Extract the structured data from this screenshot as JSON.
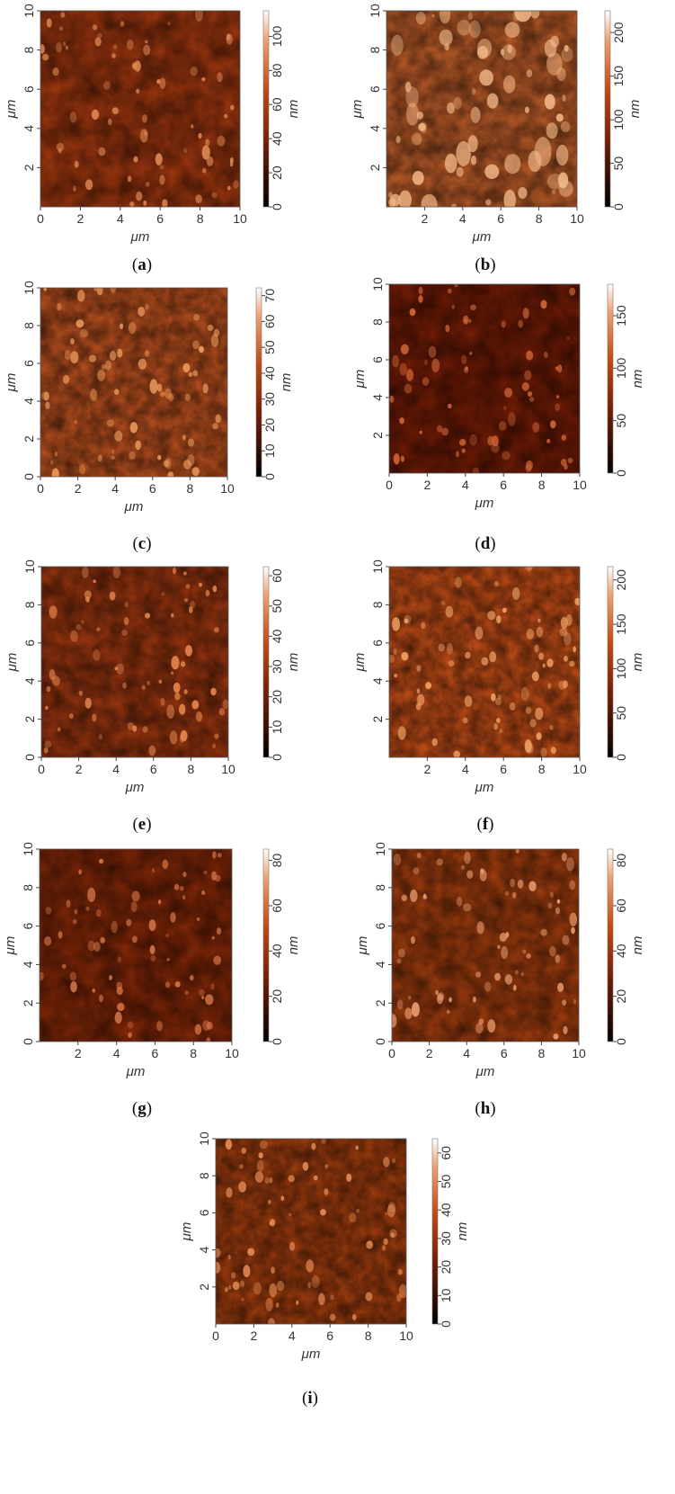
{
  "figure": {
    "panels": [
      {
        "label": "a",
        "caption": "(a)",
        "x_unit": "μm",
        "y_unit": "μm",
        "bar_unit": "nm",
        "x_ticks": [
          "0",
          "2",
          "4",
          "6",
          "8",
          "10"
        ],
        "y_ticks": [
          "2",
          "4",
          "6",
          "8",
          "10"
        ],
        "bar_ticks": [
          "0",
          "20",
          "40",
          "60",
          "80",
          "100"
        ],
        "bar_max": 115,
        "colors": [
          "#5a1806",
          "#a83a10",
          "#e08a55"
        ]
      },
      {
        "label": "b",
        "caption": "(b)",
        "x_unit": "μm",
        "y_unit": "μm",
        "bar_unit": "nm",
        "x_ticks": [
          "2",
          "4",
          "6",
          "8",
          "10"
        ],
        "y_ticks": [
          "2",
          "4",
          "6",
          "8",
          "10"
        ],
        "bar_ticks": [
          "0",
          "50",
          "100",
          "150",
          "200"
        ],
        "bar_max": 225,
        "colors": [
          "#7a2a0c",
          "#c4602a",
          "#f2b888"
        ]
      },
      {
        "label": "c",
        "caption": "(c)",
        "x_unit": "μm",
        "y_unit": "μm",
        "bar_unit": "nm",
        "x_ticks": [
          "0",
          "2",
          "4",
          "6",
          "8",
          "10"
        ],
        "y_ticks": [
          "0",
          "2",
          "4",
          "6",
          "8",
          "10"
        ],
        "bar_ticks": [
          "0",
          "10",
          "20",
          "30",
          "40",
          "50",
          "60",
          "70"
        ],
        "bar_max": 73,
        "colors": [
          "#7a2508",
          "#c25420",
          "#f2a060"
        ]
      },
      {
        "label": "d",
        "caption": "(d)",
        "x_unit": "μm",
        "y_unit": "μm",
        "bar_unit": "nm",
        "x_ticks": [
          "0",
          "2",
          "4",
          "6",
          "8",
          "10"
        ],
        "y_ticks": [
          "2",
          "4",
          "6",
          "8",
          "10"
        ],
        "bar_ticks": [
          "0",
          "50",
          "100",
          "150"
        ],
        "bar_max": 180,
        "colors": [
          "#3e0d02",
          "#7a1e06",
          "#d0683a"
        ]
      },
      {
        "label": "e",
        "caption": "(e)",
        "x_unit": "μm",
        "y_unit": "μm",
        "bar_unit": "nm",
        "x_ticks": [
          "0",
          "2",
          "4",
          "6",
          "8",
          "10"
        ],
        "y_ticks": [
          "0",
          "2",
          "4",
          "6",
          "8",
          "10"
        ],
        "bar_ticks": [
          "0",
          "10",
          "20",
          "30",
          "40",
          "50",
          "60"
        ],
        "bar_max": 63,
        "colors": [
          "#5c1a05",
          "#a03810",
          "#e88850"
        ]
      },
      {
        "label": "f",
        "caption": "(f)",
        "x_unit": "μm",
        "y_unit": "μm",
        "bar_unit": "nm",
        "x_ticks": [
          "2",
          "4",
          "6",
          "8",
          "10"
        ],
        "y_ticks": [
          "2",
          "4",
          "6",
          "8",
          "10"
        ],
        "bar_ticks": [
          "0",
          "50",
          "100",
          "150",
          "200"
        ],
        "bar_max": 215,
        "colors": [
          "#9a3208",
          "#c85018",
          "#f2a468"
        ]
      },
      {
        "label": "g",
        "caption": "(g)",
        "x_unit": "μm",
        "y_unit": "μm",
        "bar_unit": "nm",
        "x_ticks": [
          "2",
          "4",
          "6",
          "8",
          "10"
        ],
        "y_ticks": [
          "0",
          "2",
          "4",
          "6",
          "8",
          "10"
        ],
        "bar_ticks": [
          "0",
          "20",
          "40",
          "60",
          "80"
        ],
        "bar_max": 85,
        "colors": [
          "#4a1204",
          "#8a2a08",
          "#d8784a"
        ]
      },
      {
        "label": "h",
        "caption": "(h)",
        "x_unit": "μm",
        "y_unit": "μm",
        "bar_unit": "nm",
        "x_ticks": [
          "0",
          "2",
          "4",
          "6",
          "8",
          "10"
        ],
        "y_ticks": [
          "0",
          "2",
          "4",
          "6",
          "8",
          "10"
        ],
        "bar_ticks": [
          "0",
          "20",
          "40",
          "60",
          "80"
        ],
        "bar_max": 85,
        "colors": [
          "#5a1605",
          "#a8400f",
          "#eea070"
        ]
      },
      {
        "label": "i",
        "caption": "(i)",
        "x_unit": "μm",
        "y_unit": "μm",
        "bar_unit": "nm",
        "x_ticks": [
          "0",
          "2",
          "4",
          "6",
          "8",
          "10"
        ],
        "y_ticks": [
          "2",
          "4",
          "6",
          "8",
          "10"
        ],
        "bar_ticks": [
          "0",
          "10",
          "20",
          "30",
          "40",
          "50",
          "60"
        ],
        "bar_max": 65,
        "colors": [
          "#6a1e06",
          "#a8400f",
          "#e89058"
        ]
      }
    ]
  }
}
